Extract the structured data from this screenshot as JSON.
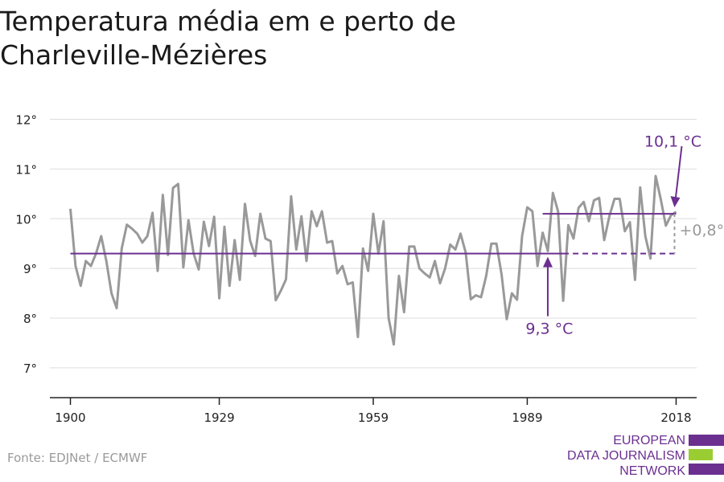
{
  "title": "Temperatura média em e perto de Charleville-Mézières",
  "source": "Fonte: EDJNet / ECMWF",
  "logo": {
    "line1": "EUROPEAN",
    "line2": "DATA JOURNALISM",
    "line3": "NETWORK",
    "colors": [
      "#6b2f90",
      "#9acd32",
      "#6b2f90"
    ]
  },
  "colors": {
    "series": "#999999",
    "accent": "#6b2f90",
    "grid": "#dddddd",
    "axis": "#222222"
  },
  "chart_data": {
    "type": "line",
    "x_ticks": [
      1900,
      1929,
      1959,
      1989,
      2018
    ],
    "y_ticks": [
      7,
      8,
      9,
      10,
      11,
      12
    ],
    "y_tick_labels": [
      "7°",
      "8°",
      "9°",
      "10°",
      "11°",
      "12°"
    ],
    "xlim": [
      1896,
      2022
    ],
    "ylim": [
      6.4,
      12.3
    ],
    "grid": true,
    "series": [
      {
        "x": [
          1900,
          1901,
          1902,
          1903,
          1904,
          1905,
          1906,
          1907,
          1908,
          1909,
          1910,
          1911,
          1912,
          1913,
          1914,
          1915,
          1916,
          1917,
          1918,
          1919,
          1920,
          1921,
          1922,
          1923,
          1924,
          1925,
          1926,
          1927,
          1928,
          1929,
          1930,
          1931,
          1932,
          1933,
          1934,
          1935,
          1936,
          1937,
          1938,
          1939,
          1940,
          1941,
          1942,
          1943,
          1944,
          1945,
          1946,
          1947,
          1948,
          1949,
          1950,
          1951,
          1952,
          1953,
          1954,
          1955,
          1956,
          1957,
          1958,
          1959,
          1960,
          1961,
          1962,
          1963,
          1964,
          1965,
          1966,
          1967,
          1968,
          1969,
          1970,
          1971,
          1972,
          1973,
          1974,
          1975,
          1976,
          1977,
          1978,
          1979,
          1980,
          1981,
          1982,
          1983,
          1984,
          1985,
          1986,
          1987,
          1988,
          1989,
          1990,
          1991,
          1992,
          1993,
          1994,
          1995,
          1996,
          1997,
          1998,
          1999,
          2000,
          2001,
          2002,
          2003,
          2004,
          2005,
          2006,
          2007,
          2008,
          2009,
          2010,
          2011,
          2012,
          2013,
          2014,
          2015,
          2016,
          2017,
          2018
        ],
        "values": [
          10.2,
          9.05,
          8.65,
          9.15,
          9.05,
          9.3,
          9.65,
          9.15,
          8.5,
          8.2,
          9.4,
          9.88,
          9.8,
          9.7,
          9.52,
          9.65,
          10.12,
          8.95,
          10.48,
          9.27,
          10.62,
          10.7,
          9.02,
          9.97,
          9.3,
          8.98,
          9.94,
          9.45,
          10.04,
          8.4,
          9.84,
          8.65,
          9.57,
          8.77,
          10.3,
          9.56,
          9.25,
          10.1,
          9.6,
          9.55,
          8.36,
          8.55,
          8.78,
          10.45,
          9.38,
          10.05,
          9.15,
          10.15,
          9.85,
          10.15,
          9.52,
          9.55,
          8.9,
          9.05,
          8.68,
          8.72,
          7.62,
          9.4,
          8.95,
          10.1,
          9.3,
          9.95,
          8.0,
          7.47,
          8.85,
          8.12,
          9.44,
          9.44,
          9.0,
          8.9,
          8.82,
          9.15,
          8.7,
          9.0,
          9.48,
          9.38,
          9.7,
          9.32,
          8.38,
          8.46,
          8.42,
          8.85,
          9.5,
          9.5,
          8.88,
          7.98,
          8.5,
          8.37,
          9.65,
          10.23,
          10.15,
          9.05,
          9.72,
          9.35,
          10.52,
          10.15,
          8.35,
          9.87,
          9.6,
          10.22,
          10.34,
          9.95,
          10.37,
          10.42,
          9.57,
          10.05,
          10.4,
          10.4,
          9.75,
          9.93,
          8.77,
          10.63,
          9.65,
          9.2,
          10.86,
          10.4,
          9.86,
          10.07,
          10.14
        ]
      }
    ],
    "annotations": {
      "baseline": {
        "value": 9.3,
        "label": "9,3 °C",
        "from": 1900,
        "to": 1996,
        "dashed_to": 2018
      },
      "recent": {
        "value": 10.1,
        "label": "10,1 °C",
        "from": 1992,
        "to": 2018
      },
      "difference": {
        "label": "+0,8°"
      }
    }
  }
}
